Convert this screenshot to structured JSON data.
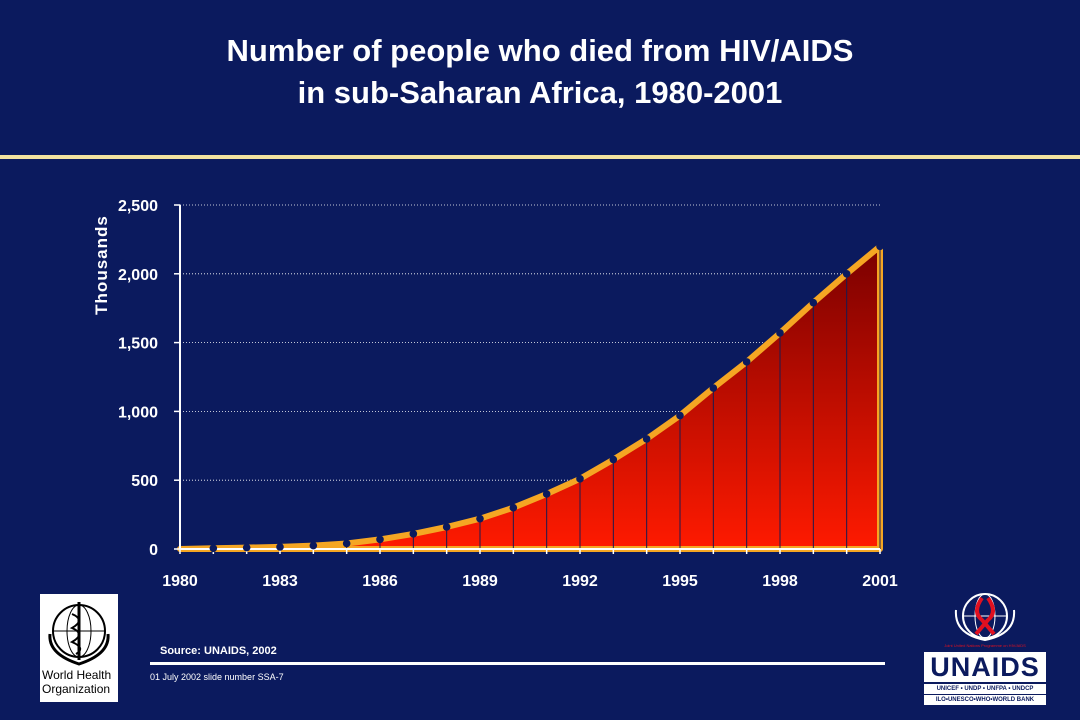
{
  "title_line1": "Number of people who died from HIV/AIDS",
  "title_line2": "in sub-Saharan Africa, 1980-2001",
  "chart_data": {
    "type": "area",
    "title": "Number of people who died from HIV/AIDS in sub-Saharan Africa, 1980-2001",
    "ylabel": "Thousands",
    "xlabel": "",
    "x": [
      1980,
      1981,
      1982,
      1983,
      1984,
      1985,
      1986,
      1987,
      1988,
      1989,
      1990,
      1991,
      1992,
      1993,
      1994,
      1995,
      1996,
      1997,
      1998,
      1999,
      2000,
      2001
    ],
    "values": [
      0,
      5,
      10,
      15,
      25,
      40,
      70,
      110,
      160,
      220,
      300,
      400,
      510,
      650,
      800,
      970,
      1170,
      1360,
      1570,
      1790,
      2000,
      2200
    ],
    "xticks": [
      "1980",
      "1983",
      "1986",
      "1989",
      "1992",
      "1995",
      "1998",
      "2001"
    ],
    "yticks": [
      "0",
      "500",
      "1,000",
      "1,500",
      "2,000",
      "2,500"
    ],
    "ylim": [
      0,
      2500
    ],
    "xlim": [
      1980,
      2001
    ],
    "grid": "horizontal-dotted",
    "colors": {
      "area_top": "#7a0000",
      "area_bottom": "#ff1a00",
      "outline": "#f5a623",
      "marker": "#0b1a5e",
      "axis": "#ffffff"
    }
  },
  "source": "Source:   UNAIDS, 2002",
  "slide_note": "01 July 2002 slide number SSA-7",
  "who_logo": {
    "line1": "World Health",
    "line2": "Organization"
  },
  "unaids_logo": {
    "wordmark": "UNAIDS",
    "tagline": "Joint United Nations Programme on HIV/AIDS",
    "sub1": "UNICEF • UNDP • UNFPA • UNDCP",
    "sub2": "ILO•UNESCO•WHO•WORLD BANK"
  }
}
